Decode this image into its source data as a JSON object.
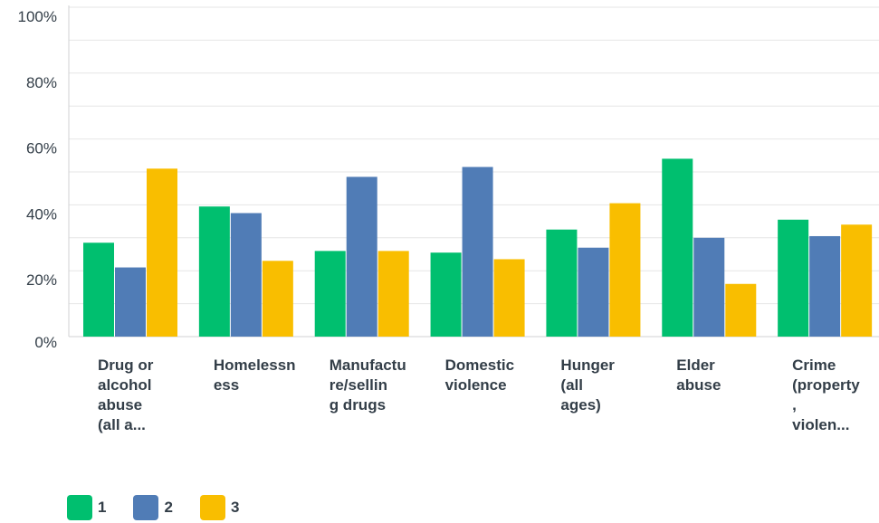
{
  "chart_data": {
    "type": "bar",
    "categories": [
      "Drug or\nalcohol\nabuse\n(all a...",
      "Homelessn\ness",
      "Manufactu\nre/sellin\ng drugs",
      "Domestic\nviolence",
      "Hunger\n(all\nages)",
      "Elder\nabuse",
      "Crime\n(property\n,\nviolen..."
    ],
    "series": [
      {
        "name": "1",
        "color": "#00bf6f",
        "values": [
          28.5,
          39.5,
          26,
          25.5,
          32.5,
          54,
          35.5
        ]
      },
      {
        "name": "2",
        "color": "#507cb6",
        "values": [
          21,
          37.5,
          48.5,
          51.5,
          27,
          30,
          30.5
        ]
      },
      {
        "name": "3",
        "color": "#f9be00",
        "values": [
          51,
          23,
          26,
          23.5,
          40.5,
          16,
          34
        ]
      }
    ],
    "ylim": [
      0,
      100
    ],
    "yticks": [
      "0%",
      "20%",
      "40%",
      "60%",
      "80%",
      "100%"
    ],
    "title": "",
    "xlabel": "",
    "ylabel": "",
    "grid": true,
    "legend_position": "bottom-left"
  }
}
